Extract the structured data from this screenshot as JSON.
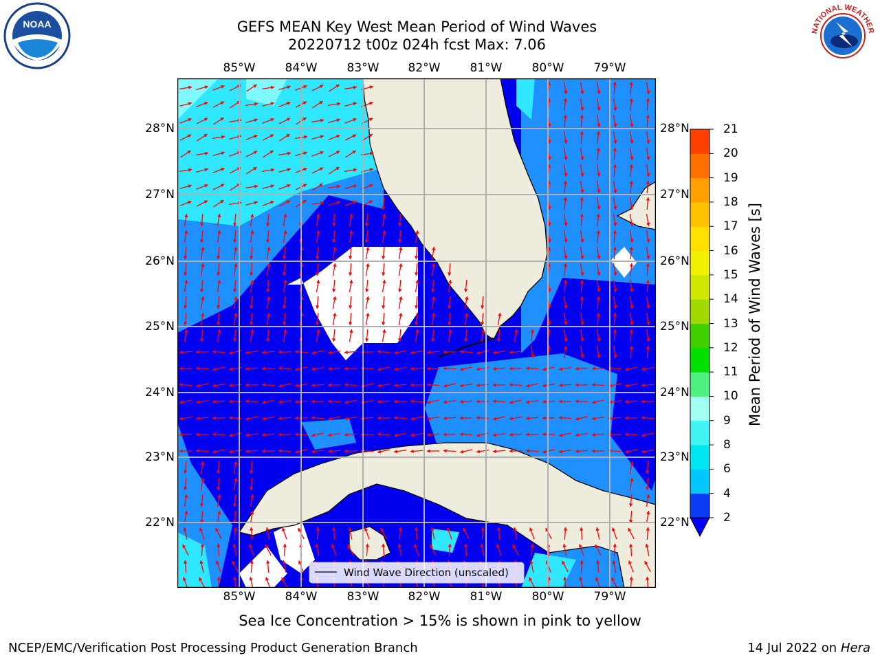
{
  "title_line1": "GEFS MEAN Key West Mean Period of Wind Waves",
  "title_line2": "20220712 t00z 024h fcst   Max: 7.06",
  "longitude_labels": [
    "85°W",
    "84°W",
    "83°W",
    "82°W",
    "81°W",
    "80°W",
    "79°W"
  ],
  "latitude_labels": [
    "28°N",
    "27°N",
    "26°N",
    "25°N",
    "24°N",
    "23°N",
    "22°N"
  ],
  "legend_text": "Wind Wave Direction (unscaled)",
  "colorbar": {
    "label": "Mean Period of Wind Waves [s]",
    "ticks": [
      "2",
      "4",
      "6",
      "8",
      "9",
      "10",
      "11",
      "12",
      "13",
      "14",
      "15",
      "16",
      "17",
      "18",
      "19",
      "20",
      "21"
    ],
    "colors": [
      "#0a3cf5",
      "#00c8ff",
      "#00e6f0",
      "#40f4f4",
      "#a0fff0",
      "#50f080",
      "#00e000",
      "#40d000",
      "#a0d800",
      "#d0e800",
      "#f0f000",
      "#ffe000",
      "#ffc000",
      "#ffa000",
      "#ff7000",
      "#ff4000",
      "#ff1000"
    ]
  },
  "map_colors": {
    "land": "#eeeddd",
    "level_2": "#0000ee",
    "level_4": "#1e90ff",
    "level_6": "#2fe8ff",
    "level_8": "#7ffbff",
    "arrow": "#ff0000",
    "grid": "#b0b0b0"
  },
  "caption": "Sea Ice Concentration > 15% is shown in pink to yellow",
  "footer_left": "NCEP/EMC/Verification Post Processing Product Generation Branch",
  "footer_right_prefix": "14 Jul 2022 on ",
  "footer_right_system": "Hera",
  "logos": {
    "left": "noaa-logo",
    "right": "national-weather-service-logo",
    "left_text": "NOAA",
    "right_text": "NATIONAL WEATHER SERVICE"
  }
}
